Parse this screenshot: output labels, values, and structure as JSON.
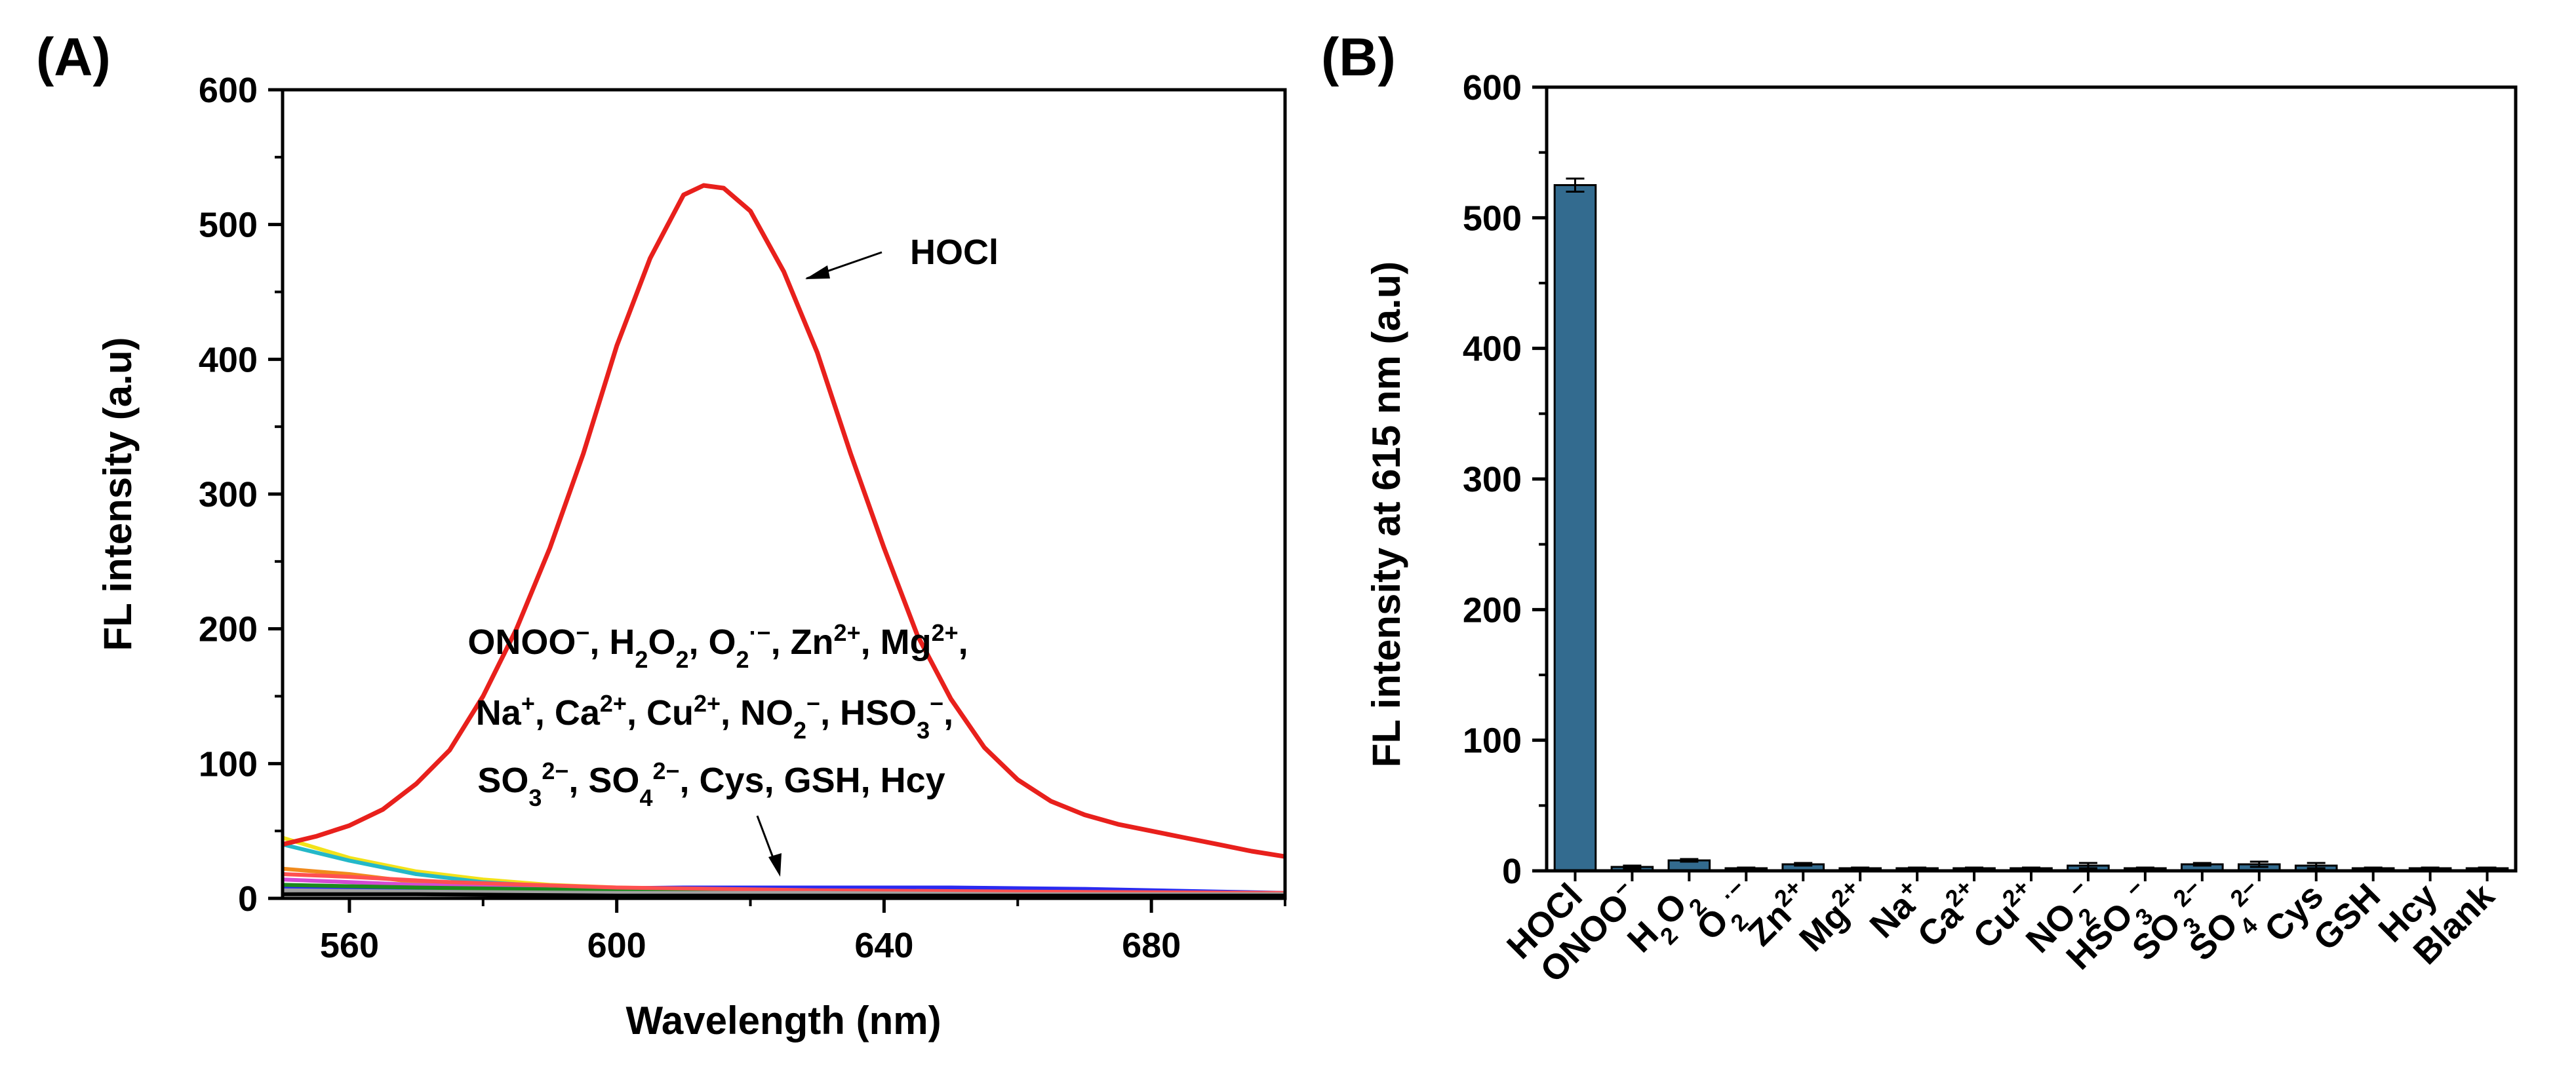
{
  "chart_data": [
    {
      "panel": "(A)",
      "type": "line",
      "xlabel": "Wavelength (nm)",
      "ylabel": "FL intensity (a.u)",
      "xlim": [
        550,
        700
      ],
      "ylim": [
        0,
        600
      ],
      "xticks": [
        560,
        600,
        640,
        680
      ],
      "yticks": [
        0,
        100,
        200,
        300,
        400,
        500,
        600
      ],
      "hocl_label": "HOCl",
      "legend_lines": [
        [
          {
            "t": "ONOO"
          },
          {
            "t": "−",
            "sup": true
          },
          {
            "t": ", H"
          },
          {
            "t": "2",
            "sub": true
          },
          {
            "t": "O"
          },
          {
            "t": "2",
            "sub": true
          },
          {
            "t": ", O"
          },
          {
            "t": "2",
            "sub": true
          },
          {
            "t": "·−",
            "sup": true
          },
          {
            "t": ", Zn"
          },
          {
            "t": "2+",
            "sup": true
          },
          {
            "t": ", Mg"
          },
          {
            "t": "2+",
            "sup": true
          },
          {
            "t": ","
          }
        ],
        [
          {
            "t": "Na"
          },
          {
            "t": "+",
            "sup": true
          },
          {
            "t": ", Ca"
          },
          {
            "t": "2+",
            "sup": true
          },
          {
            "t": ", Cu"
          },
          {
            "t": "2+",
            "sup": true
          },
          {
            "t": ", NO"
          },
          {
            "t": "2",
            "sub": true
          },
          {
            "t": "−",
            "sup": true
          },
          {
            "t": ", HSO"
          },
          {
            "t": "3",
            "sub": true
          },
          {
            "t": "−",
            "sup": true
          },
          {
            "t": ","
          }
        ],
        [
          {
            "t": "SO"
          },
          {
            "t": "3",
            "sub": true
          },
          {
            "t": "2−",
            "sup": true
          },
          {
            "t": ", SO"
          },
          {
            "t": "4",
            "sub": true
          },
          {
            "t": "2−",
            "sup": true
          },
          {
            "t": ", Cys, GSH, Hcy"
          }
        ]
      ],
      "series": [
        {
          "name": "HOCl",
          "color": "#e8201c",
          "x": [
            550,
            555,
            560,
            565,
            570,
            575,
            580,
            585,
            590,
            595,
            600,
            605,
            610,
            613,
            616,
            620,
            625,
            630,
            635,
            640,
            645,
            650,
            655,
            660,
            665,
            670,
            675,
            680,
            685,
            690,
            695,
            700
          ],
          "y": [
            40,
            46,
            54,
            66,
            85,
            110,
            150,
            200,
            260,
            330,
            410,
            475,
            522,
            529,
            527,
            510,
            465,
            405,
            330,
            260,
            195,
            148,
            112,
            88,
            72,
            62,
            55,
            50,
            45,
            40,
            35,
            31
          ]
        },
        {
          "name": "ONOO−",
          "color": "#f2e21a",
          "x": [
            550,
            560,
            570,
            580,
            590,
            600,
            620,
            640,
            660,
            680,
            700
          ],
          "y": [
            45,
            30,
            20,
            14,
            10,
            8,
            6,
            5,
            4,
            4,
            3
          ]
        },
        {
          "name": "H2O2",
          "color": "#24b8c8",
          "x": [
            550,
            560,
            570,
            580,
            590,
            600,
            620,
            640,
            660,
            680,
            700
          ],
          "y": [
            40,
            28,
            18,
            12,
            9,
            7,
            5,
            4,
            4,
            3,
            3
          ]
        },
        {
          "name": "O2·−",
          "color": "#2a2af0",
          "x": [
            550,
            570,
            590,
            610,
            630,
            650,
            670,
            690,
            700
          ],
          "y": [
            8,
            7,
            7,
            8,
            8,
            8,
            7,
            5,
            4
          ]
        },
        {
          "name": "Zn2+",
          "color": "#f08a1c",
          "x": [
            550,
            560,
            570,
            590,
            610,
            630,
            650,
            680,
            700
          ],
          "y": [
            22,
            18,
            12,
            8,
            6,
            5,
            4,
            3,
            3
          ]
        },
        {
          "name": "Mg2+",
          "color": "#d44ad4",
          "x": [
            550,
            570,
            600,
            630,
            660,
            700
          ],
          "y": [
            14,
            10,
            7,
            5,
            4,
            3
          ]
        },
        {
          "name": "Na+",
          "color": "#1c8a1c",
          "x": [
            550,
            570,
            600,
            630,
            660,
            700
          ],
          "y": [
            10,
            8,
            6,
            5,
            4,
            3
          ]
        },
        {
          "name": "Ca2+",
          "color": "#ff5050",
          "x": [
            550,
            560,
            575,
            600,
            630,
            660,
            700
          ],
          "y": [
            18,
            16,
            12,
            8,
            6,
            5,
            4
          ]
        },
        {
          "name": "Cu2+",
          "color": "#a0a0a0",
          "x": [
            550,
            570,
            600,
            630,
            660,
            700
          ],
          "y": [
            6,
            5,
            4,
            4,
            3,
            3
          ]
        },
        {
          "name": "Blank",
          "color": "#000000",
          "x": [
            550,
            570,
            600,
            630,
            660,
            700
          ],
          "y": [
            3,
            3,
            2,
            2,
            2,
            2
          ]
        }
      ]
    },
    {
      "panel": "(B)",
      "type": "bar",
      "ylabel": "FL intensity at 615 nm (a.u)",
      "ylim": [
        0,
        600
      ],
      "yticks": [
        0,
        100,
        200,
        300,
        400,
        500,
        600
      ],
      "bar_color": "#336b8f",
      "categories": [
        {
          "key": "HOCl",
          "parts": [
            {
              "t": "HOCl"
            }
          ]
        },
        {
          "key": "ONOO−",
          "parts": [
            {
              "t": "ONOO"
            },
            {
              "t": "−",
              "sup": true
            }
          ]
        },
        {
          "key": "H2O2",
          "parts": [
            {
              "t": "H"
            },
            {
              "t": "2",
              "sub": true
            },
            {
              "t": "O"
            },
            {
              "t": "2",
              "sub": true
            }
          ]
        },
        {
          "key": "O2·−",
          "parts": [
            {
              "t": "O"
            },
            {
              "t": "2",
              "sub": true
            },
            {
              "t": "·−",
              "sup": true
            }
          ]
        },
        {
          "key": "Zn2+",
          "parts": [
            {
              "t": "Zn"
            },
            {
              "t": "2+",
              "sup": true
            }
          ]
        },
        {
          "key": "Mg2+",
          "parts": [
            {
              "t": "Mg"
            },
            {
              "t": "2+",
              "sup": true
            }
          ]
        },
        {
          "key": "Na+",
          "parts": [
            {
              "t": "Na"
            },
            {
              "t": "+",
              "sup": true
            }
          ]
        },
        {
          "key": "Ca2+",
          "parts": [
            {
              "t": "Ca"
            },
            {
              "t": "2+",
              "sup": true
            }
          ]
        },
        {
          "key": "Cu2+",
          "parts": [
            {
              "t": "Cu"
            },
            {
              "t": "2+",
              "sup": true
            }
          ]
        },
        {
          "key": "NO2−",
          "parts": [
            {
              "t": "NO"
            },
            {
              "t": "2",
              "sub": true
            },
            {
              "t": "−",
              "sup": true
            }
          ]
        },
        {
          "key": "HSO3−",
          "parts": [
            {
              "t": "HSO"
            },
            {
              "t": "3",
              "sub": true
            },
            {
              "t": "−",
              "sup": true
            }
          ]
        },
        {
          "key": "SO32−",
          "parts": [
            {
              "t": "SO"
            },
            {
              "t": "3",
              "sub": true
            },
            {
              "t": "2−",
              "sup": true
            }
          ]
        },
        {
          "key": "SO42−",
          "parts": [
            {
              "t": "SO"
            },
            {
              "t": "4",
              "sub": true
            },
            {
              "t": "2−",
              "sup": true
            }
          ]
        },
        {
          "key": "Cys",
          "parts": [
            {
              "t": "Cys"
            }
          ]
        },
        {
          "key": "GSH",
          "parts": [
            {
              "t": "GSH"
            }
          ]
        },
        {
          "key": "Hcy",
          "parts": [
            {
              "t": "Hcy"
            }
          ]
        },
        {
          "key": "Blank",
          "parts": [
            {
              "t": "Blank"
            }
          ]
        }
      ],
      "values": [
        525,
        3,
        8,
        2,
        5,
        2,
        2,
        2,
        2,
        4,
        2,
        5,
        5,
        4,
        2,
        2,
        2
      ],
      "errors": [
        5,
        1,
        1,
        0.5,
        1,
        0.5,
        0.5,
        0.5,
        0.5,
        2,
        0.5,
        1,
        2,
        2,
        0.5,
        0.5,
        0.5
      ]
    }
  ]
}
